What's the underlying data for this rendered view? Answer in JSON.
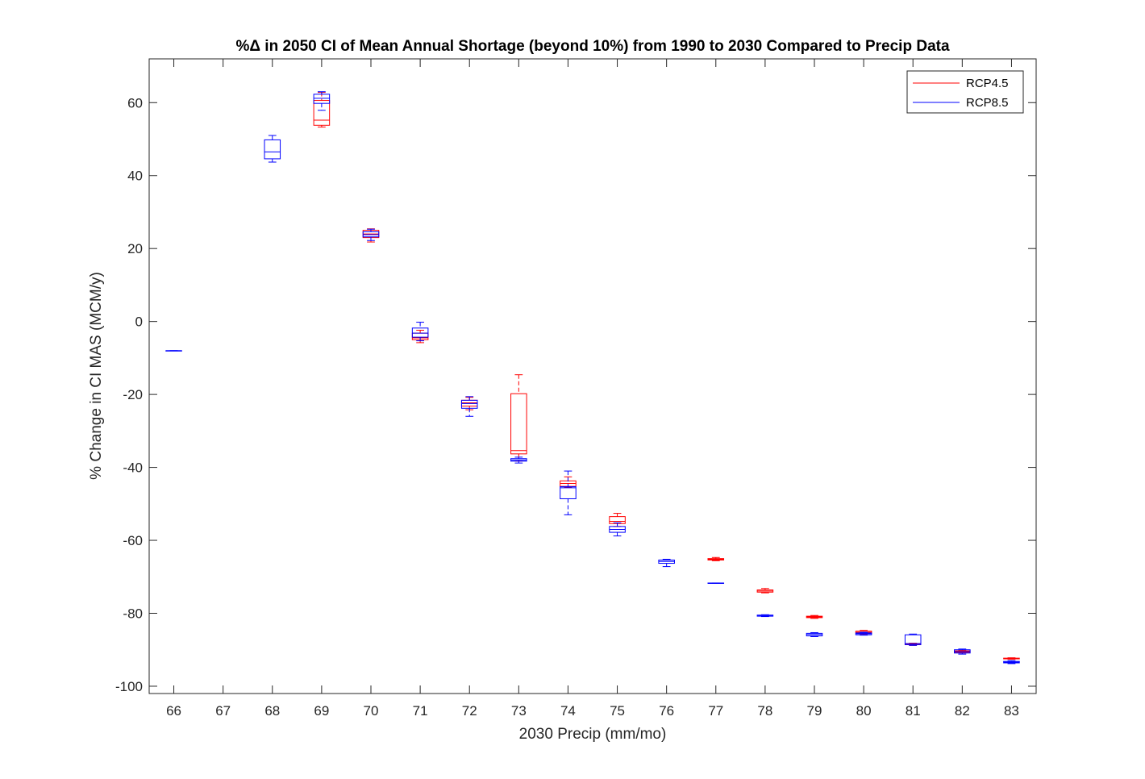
{
  "chart_data": {
    "type": "box",
    "title": "%Δ in 2050 CI of Mean Annual Shortage (beyond 10%) from 1990 to 2030 Compared to Precip Data",
    "xlabel": "2030 Precip (mm/mo)",
    "ylabel": "% Change in CI MAS (MCM/y)",
    "ylim": [
      -102,
      72
    ],
    "xlim": [
      65.5,
      83.5
    ],
    "yticks": [
      "-100",
      "-80",
      "-60",
      "-40",
      "-20",
      "0",
      "20",
      "40",
      "60"
    ],
    "ytick_values": [
      -100,
      -80,
      -60,
      -40,
      -20,
      0,
      20,
      40,
      60
    ],
    "categories": [
      "66",
      "67",
      "68",
      "69",
      "70",
      "71",
      "72",
      "73",
      "74",
      "75",
      "76",
      "77",
      "78",
      "79",
      "80",
      "81",
      "82",
      "83"
    ],
    "x_values": [
      66,
      67,
      68,
      69,
      70,
      71,
      72,
      73,
      74,
      75,
      76,
      77,
      78,
      79,
      80,
      81,
      82,
      83
    ],
    "grid": false,
    "legend_position": "top-right",
    "series": [
      {
        "name": "RCP4.5",
        "color": "#ff0000",
        "boxes": [
          {
            "x": 69,
            "min": 53.3,
            "q1": 53.8,
            "median": 55.2,
            "q3": 60.6,
            "max": 62.8
          },
          {
            "x": 70,
            "min": 21.8,
            "q1": 23.0,
            "median": 24.0,
            "q3": 25.0,
            "max": 25.4
          },
          {
            "x": 71,
            "min": -5.8,
            "q1": -5.0,
            "median": -4.5,
            "q3": -3.2,
            "max": -2.4
          },
          {
            "x": 72,
            "min": -24.2,
            "q1": -23.2,
            "median": -22.3,
            "q3": -21.6,
            "max": -20.8
          },
          {
            "x": 73,
            "min": -38.3,
            "q1": -36.3,
            "median": -35.4,
            "q3": -19.8,
            "max": -14.6
          },
          {
            "x": 74,
            "min": -45.5,
            "q1": -45.2,
            "median": -44.4,
            "q3": -43.7,
            "max": -42.6
          },
          {
            "x": 75,
            "min": -56.2,
            "q1": -55.4,
            "median": -54.8,
            "q3": -53.5,
            "max": -52.6
          },
          {
            "x": 77,
            "min": -65.6,
            "q1": -65.4,
            "median": -65.2,
            "q3": -65.0,
            "max": -64.7
          },
          {
            "x": 78,
            "min": -74.4,
            "q1": -74.2,
            "median": -73.9,
            "q3": -73.6,
            "max": -73.2
          },
          {
            "x": 79,
            "min": -81.4,
            "q1": -81.2,
            "median": -81.0,
            "q3": -80.8,
            "max": -80.6
          },
          {
            "x": 80,
            "min": -85.8,
            "q1": -85.5,
            "median": -85.2,
            "q3": -84.9,
            "max": -84.7
          },
          {
            "x": 81,
            "min": -88.8,
            "q1": -88.6,
            "median": -88.5,
            "q3": -88.3,
            "max": -88.2
          },
          {
            "x": 82,
            "min": -90.9,
            "q1": -90.7,
            "median": -90.5,
            "q3": -90.3,
            "max": -90.1
          },
          {
            "x": 83,
            "min": -92.6,
            "q1": -92.5,
            "median": -92.4,
            "q3": -92.3,
            "max": -92.2
          }
        ]
      },
      {
        "name": "RCP8.5",
        "color": "#0000ff",
        "boxes": [
          {
            "x": 66,
            "min": -8.0,
            "q1": -8.0,
            "median": -8.0,
            "q3": -8.0,
            "max": -8.0
          },
          {
            "x": 68,
            "min": 43.7,
            "q1": 44.6,
            "median": 46.5,
            "q3": 49.8,
            "max": 51.0
          },
          {
            "x": 69,
            "min": 57.9,
            "q1": 59.8,
            "median": 61.2,
            "q3": 62.3,
            "max": 63.0
          },
          {
            "x": 70,
            "min": 22.2,
            "q1": 23.2,
            "median": 23.8,
            "q3": 24.6,
            "max": 25.3
          },
          {
            "x": 71,
            "min": -5.3,
            "q1": -4.3,
            "median": -3.2,
            "q3": -1.8,
            "max": -0.2
          },
          {
            "x": 72,
            "min": -26.0,
            "q1": -23.8,
            "median": -22.5,
            "q3": -21.6,
            "max": -20.6
          },
          {
            "x": 73,
            "min": -38.8,
            "q1": -38.3,
            "median": -38.0,
            "q3": -37.6,
            "max": -37.2
          },
          {
            "x": 74,
            "min": -53.0,
            "q1": -48.6,
            "median": -45.6,
            "q3": -45.3,
            "max": -41.0
          },
          {
            "x": 75,
            "min": -58.8,
            "q1": -57.8,
            "median": -57.0,
            "q3": -56.2,
            "max": -55.2
          },
          {
            "x": 76,
            "min": -67.2,
            "q1": -66.3,
            "median": -65.8,
            "q3": -65.4,
            "max": -65.2
          },
          {
            "x": 77,
            "min": -71.8,
            "q1": -71.8,
            "median": -71.8,
            "q3": -71.7,
            "max": -71.7
          },
          {
            "x": 78,
            "min": -80.9,
            "q1": -80.8,
            "median": -80.6,
            "q3": -80.5,
            "max": -80.4
          },
          {
            "x": 79,
            "min": -86.4,
            "q1": -86.2,
            "median": -85.8,
            "q3": -85.5,
            "max": -85.3
          },
          {
            "x": 80,
            "min": -86.0,
            "q1": -85.9,
            "median": -85.6,
            "q3": -85.4,
            "max": -85.2
          },
          {
            "x": 81,
            "min": -88.8,
            "q1": -88.6,
            "median": -88.3,
            "q3": -85.9,
            "max": -85.7
          },
          {
            "x": 82,
            "min": -91.2,
            "q1": -90.9,
            "median": -90.5,
            "q3": -90.0,
            "max": -89.8
          },
          {
            "x": 83,
            "min": -93.8,
            "q1": -93.6,
            "median": -93.4,
            "q3": -93.2,
            "max": -93.0
          }
        ]
      }
    ]
  }
}
